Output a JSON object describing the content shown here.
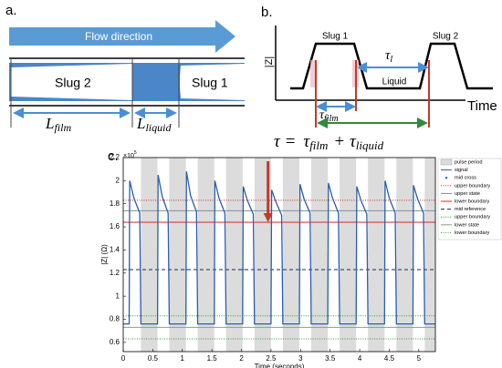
{
  "panel_a": {
    "label": "a.",
    "flow": "Flow direction",
    "slug2": "Slug 2",
    "slug1": "Slug 1",
    "l_symbol": "L",
    "film": "film",
    "liquid": "liquid"
  },
  "panel_b": {
    "label": "b.",
    "y_label": "|Z|",
    "x_label": "Time",
    "slug1": "Slug 1",
    "slug2": "Slug 2",
    "liquid": "Liquid",
    "tau": "τ",
    "l": "l",
    "film": "film"
  },
  "equation": {
    "lhs": "τ =",
    "tau1": "τ",
    "sub1": "film",
    "plus": "+ τ",
    "sub2": "liquid"
  },
  "chart_data": {
    "type": "line",
    "panel_label": "c.",
    "xlabel": "Time (seconds)",
    "ylabel": "|Z| (Ω)",
    "y_exponent": {
      "base": "×10",
      "power": "5"
    },
    "xlim": [
      0,
      5.28
    ],
    "ylim": [
      0.52,
      2.2
    ],
    "xticks": [
      0,
      0.5,
      1,
      1.5,
      2,
      2.5,
      3,
      3.5,
      4,
      4.5,
      5
    ],
    "yticks": [
      0.6,
      0.8,
      1,
      1.2,
      1.4,
      1.6,
      1.8,
      2,
      2.2
    ],
    "pulse_period": {
      "name": "pulse period",
      "color": "#dcdcdc",
      "intervals": [
        [
          0.3,
          0.58
        ],
        [
          0.78,
          1.06
        ],
        [
          1.26,
          1.54
        ],
        [
          1.74,
          2.02
        ],
        [
          2.22,
          2.5
        ],
        [
          2.7,
          2.98
        ],
        [
          3.18,
          3.46
        ],
        [
          3.66,
          3.94
        ],
        [
          4.14,
          4.42
        ],
        [
          4.62,
          4.9
        ],
        [
          5.1,
          5.28
        ]
      ]
    },
    "series": [
      {
        "name": "signal",
        "color": "#2a5db0",
        "x": [
          0,
          0.1,
          0.11,
          0.18,
          0.28,
          0.3,
          0.58,
          0.59,
          0.66,
          0.76,
          0.78,
          1.06,
          1.07,
          1.14,
          1.24,
          1.26,
          1.54,
          1.55,
          1.62,
          1.72,
          1.74,
          2.02,
          2.03,
          2.1,
          2.2,
          2.22,
          2.5,
          2.51,
          2.58,
          2.68,
          2.7,
          2.98,
          2.99,
          3.06,
          3.16,
          3.18,
          3.46,
          3.47,
          3.54,
          3.64,
          3.66,
          3.94,
          3.95,
          4.02,
          4.12,
          4.14,
          4.42,
          4.43,
          4.5,
          4.6,
          4.62,
          4.9,
          4.91,
          4.98,
          5.08,
          5.1,
          5.28
        ],
        "values": [
          0.76,
          0.76,
          2.0,
          1.85,
          1.72,
          0.76,
          0.76,
          2.05,
          1.86,
          1.72,
          0.76,
          0.76,
          2.08,
          1.87,
          1.73,
          0.76,
          0.76,
          2.0,
          1.85,
          1.72,
          0.76,
          0.76,
          1.95,
          1.83,
          1.71,
          0.76,
          0.76,
          1.92,
          1.82,
          1.7,
          0.76,
          0.76,
          1.97,
          1.84,
          1.72,
          0.76,
          0.76,
          1.98,
          1.85,
          1.72,
          0.76,
          0.76,
          1.95,
          1.83,
          1.71,
          0.76,
          0.76,
          2.0,
          1.85,
          1.72,
          0.76,
          0.76,
          1.96,
          1.84,
          1.72,
          0.76,
          0.76
        ]
      }
    ],
    "mid_cross": {
      "name": "mid cross",
      "color": "#3a7ac0",
      "y": 1.23,
      "x": [
        0.105,
        0.585,
        1.065,
        1.545,
        2.025,
        2.505,
        2.985,
        3.465,
        3.945,
        4.425,
        4.905
      ]
    },
    "levels": [
      {
        "name": "upper boundary",
        "value": 1.83,
        "color": "#d62728",
        "dash": "1,1.5"
      },
      {
        "name": "upper state",
        "value": 1.74,
        "color": "#7f8fa6",
        "dash": ""
      },
      {
        "name": "lower boundary",
        "value": 1.64,
        "color": "#d62728",
        "dash": ""
      },
      {
        "name": "mid reference",
        "value": 1.23,
        "color": "#1f2d4a",
        "dash": "4,3"
      },
      {
        "name": "upper boundary",
        "value": 0.83,
        "color": "#2ca02c",
        "dash": "1,1.5"
      },
      {
        "name": "lower state",
        "value": 0.73,
        "color": "#7fa67f",
        "dash": ""
      },
      {
        "name": "lower boundary",
        "value": 0.63,
        "color": "#2ca02c",
        "dash": "1,1.5"
      }
    ]
  }
}
